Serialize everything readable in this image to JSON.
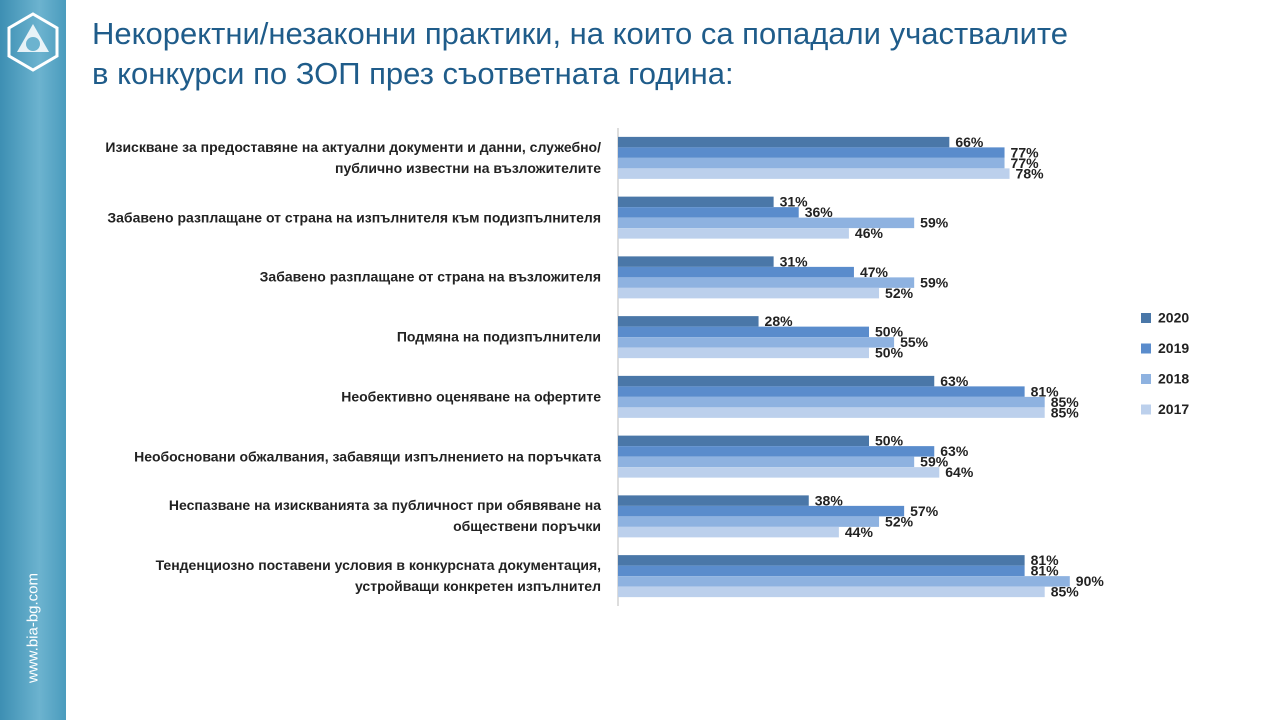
{
  "site": "www.bia-bg.com",
  "chart_data": {
    "type": "bar",
    "orientation": "horizontal",
    "title": "Некоректни/незаконни практики, на които са попадали участвалите в конкурси по ЗОП през съответната година:",
    "categories": [
      "Изискване за предоставяне на актуални документи и данни, служебно/публично известни на възложителите",
      "Забавено разплащане от страна на изпълнителя към подизпълнителя",
      "Забавено разплащане от страна на възложителя",
      "Подмяна на подизпълнители",
      "Необективно оценяване на офертите",
      "Необосновани обжалвания, забавящи изпълнението на поръчката",
      "Неспазване на изискванията за публичност при обявяване на обществени поръчки",
      "Тенденциозно поставени условия в конкурсната документация, устройващи конкретен изпълнител"
    ],
    "xlim": [
      0,
      100
    ],
    "legend": "right",
    "series": [
      {
        "name": "2020",
        "color": "#4a77a8",
        "values": [
          66,
          31,
          31,
          28,
          63,
          50,
          38,
          81
        ],
        "value_labels": [
          "66%",
          "31%",
          "31%",
          "28%",
          "63%",
          "50%",
          "38%",
          "81%"
        ]
      },
      {
        "name": "2019",
        "color": "#5a8ccc",
        "values": [
          77,
          36,
          47,
          50,
          81,
          63,
          57,
          81
        ],
        "value_labels": [
          "77%",
          "36%",
          "47%",
          "50%",
          "81%",
          "63%",
          "57%",
          "81%"
        ]
      },
      {
        "name": "2018",
        "color": "#8eb2e0",
        "values": [
          77,
          59,
          59,
          55,
          85,
          59,
          52,
          90
        ],
        "value_labels": [
          "77%",
          "59%",
          "59%",
          "55%",
          "85%",
          "59%",
          "52%",
          "90%"
        ]
      },
      {
        "name": "2017",
        "color": "#bcd0ec",
        "values": [
          78,
          46,
          52,
          50,
          85,
          64,
          44,
          85
        ],
        "value_labels": [
          "78%",
          "46%",
          "52%",
          "50%",
          "85%",
          "64%",
          "44%",
          "85%"
        ]
      }
    ]
  }
}
